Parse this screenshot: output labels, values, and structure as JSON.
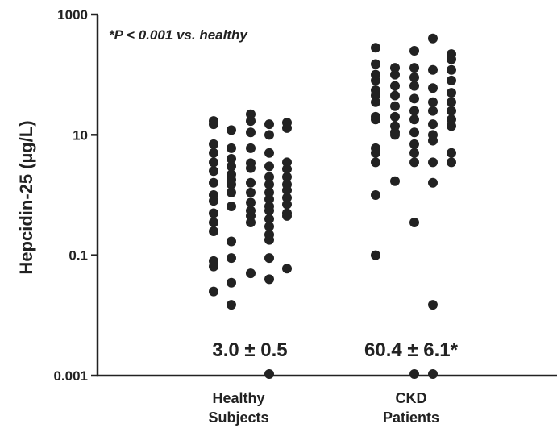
{
  "chart_data": {
    "type": "scatter",
    "yscale": "log",
    "ylim": [
      0.001,
      1000
    ],
    "ylabel": "Hepcidin-25 (µg/L)",
    "yticks": [
      "0.001",
      "0.1",
      "10",
      "1000"
    ],
    "yticks_values": [
      0.001,
      0.1,
      10,
      1000
    ],
    "annotation": "*P < 0.001 vs. healthy",
    "categories": [
      {
        "line1": "Healthy",
        "line2": "Subjects",
        "stat": "3.0 ± 0.5"
      },
      {
        "line1": "CKD",
        "line2": "Patients",
        "stat": "60.4 ± 6.1*"
      }
    ],
    "series": [
      {
        "group": 0,
        "values": [
          [
            17,
            15,
            7,
            5,
            3.5,
            2.5,
            1.6,
            1,
            0.8,
            0.5,
            0.35,
            0.25,
            0.08,
            0.065,
            0.025
          ],
          [
            12,
            6,
            4,
            3,
            2.2,
            1.8,
            1.5,
            1.1,
            0.65,
            0.17,
            0.09,
            0.035,
            0.015
          ],
          [
            22,
            17,
            11,
            6,
            3.4,
            2.8,
            1.6,
            1.1,
            0.75,
            0.55,
            0.45,
            0.35,
            0.05
          ],
          [
            15,
            10,
            5,
            3,
            2,
            1.5,
            1.1,
            0.85,
            0.65,
            0.55,
            0.4,
            0.3,
            0.22,
            0.18,
            0.09,
            0.04,
            0.001
          ],
          [
            16,
            13,
            3.5,
            2.7,
            2,
            1.5,
            1.2,
            0.9,
            0.7,
            0.5,
            0.45,
            0.06
          ]
        ]
      },
      {
        "group": 1,
        "values": [
          [
            280,
            150,
            100,
            80,
            55,
            45,
            35,
            20,
            18,
            6,
            5,
            3.5,
            1,
            0.1
          ],
          [
            130,
            100,
            65,
            45,
            30,
            20,
            14,
            11,
            10,
            1.7
          ],
          [
            250,
            130,
            90,
            65,
            40,
            25,
            18,
            11,
            7,
            5,
            3.5,
            0.35,
            0.001
          ],
          [
            400,
            120,
            60,
            35,
            25,
            15,
            10,
            8,
            3.5,
            1.6,
            0.015,
            0.001
          ],
          [
            220,
            180,
            120,
            80,
            50,
            35,
            25,
            18,
            14,
            5,
            3.5
          ]
        ]
      }
    ]
  }
}
